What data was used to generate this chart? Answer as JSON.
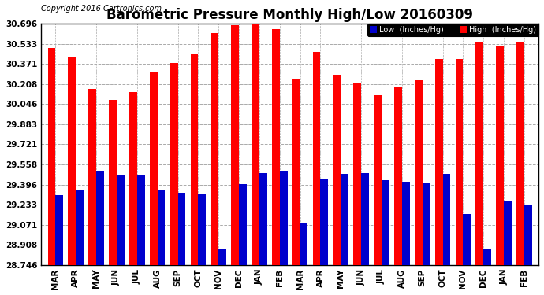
{
  "title": "Barometric Pressure Monthly High/Low 20160309",
  "copyright": "Copyright 2016 Cartronics.com",
  "categories": [
    "MAR",
    "APR",
    "MAY",
    "JUN",
    "JUL",
    "AUG",
    "SEP",
    "OCT",
    "NOV",
    "DEC",
    "JAN",
    "FEB",
    "MAR",
    "APR",
    "MAY",
    "JUN",
    "JUL",
    "AUG",
    "SEP",
    "OCT",
    "NOV",
    "DEC",
    "JAN",
    "FEB"
  ],
  "high_values": [
    30.5,
    30.43,
    30.17,
    30.08,
    30.14,
    30.31,
    30.38,
    30.45,
    30.62,
    30.68,
    30.7,
    30.65,
    30.25,
    30.47,
    30.28,
    30.21,
    30.12,
    30.19,
    30.24,
    30.41,
    30.41,
    30.54,
    30.52,
    30.55
  ],
  "low_values": [
    29.31,
    29.35,
    29.5,
    29.47,
    29.47,
    29.35,
    29.33,
    29.32,
    28.88,
    29.4,
    29.49,
    29.51,
    29.08,
    29.44,
    29.48,
    29.49,
    29.43,
    29.42,
    29.41,
    29.48,
    29.16,
    28.87,
    29.26,
    29.23
  ],
  "bar_color_high": "#ff0000",
  "bar_color_low": "#0000cc",
  "background_color": "#ffffff",
  "plot_bg_color": "#ffffff",
  "ytick_labels": [
    "28.746",
    "28.908",
    "29.071",
    "29.233",
    "29.396",
    "29.558",
    "29.721",
    "29.883",
    "30.046",
    "30.208",
    "30.371",
    "30.533",
    "30.696"
  ],
  "ytick_values": [
    28.746,
    28.908,
    29.071,
    29.233,
    29.396,
    29.558,
    29.721,
    29.883,
    30.046,
    30.208,
    30.371,
    30.533,
    30.696
  ],
  "ymin": 28.746,
  "ymax": 30.696,
  "grid_color": "#aaaaaa",
  "legend_low_color": "#0000cc",
  "legend_high_color": "#ff0000",
  "title_fontsize": 12,
  "copyright_fontsize": 7,
  "tick_fontsize": 7.5,
  "bar_width": 0.38
}
